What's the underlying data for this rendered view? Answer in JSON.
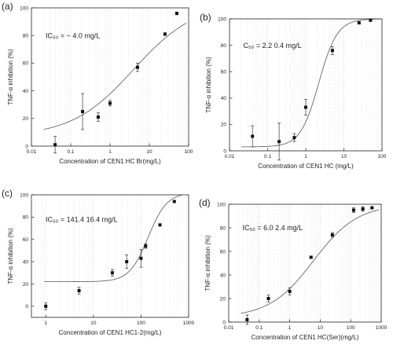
{
  "chart_data": [
    {
      "type": "scatter",
      "panel_label": "(a)",
      "annotation": "IC₅₀ = ~ 4.0 mg/L",
      "xlabel": "Concentration of CEN1 HC Br(mg/L)",
      "ylabel": "TNF-α inhibition (%)",
      "x_scale": "log",
      "xlim": [
        0.01,
        100
      ],
      "ylim": [
        0,
        100
      ],
      "x_ticks": [
        0.01,
        0.1,
        1,
        10,
        100
      ],
      "x_tick_labels": [
        "0.01",
        "0.1",
        "1",
        "10",
        "100"
      ],
      "y_ticks": [
        0,
        20,
        40,
        60,
        80,
        100
      ],
      "y_tick_labels": [
        "0",
        "20",
        "40",
        "60",
        "80",
        "100"
      ],
      "x": [
        0.04,
        0.2,
        0.5,
        1,
        5,
        25,
        50
      ],
      "y": [
        1,
        25,
        21,
        31,
        57,
        81,
        96
      ],
      "err": [
        6,
        13,
        3,
        2,
        3,
        1,
        1
      ],
      "fit": {
        "bottom": 7,
        "top": 104,
        "ic50": 4,
        "hill": 0.55
      }
    },
    {
      "type": "scatter",
      "panel_label": "(b)",
      "annotation": "C₅₀ = 2.2 0.4 mg/L",
      "xlabel": "Concentration of CEN1 HC (mg/L)",
      "ylabel": "TNF-α inhibition (%)",
      "x_scale": "log",
      "xlim": [
        0.01,
        100
      ],
      "ylim": [
        0,
        100
      ],
      "x_ticks": [
        0.01,
        0.1,
        1,
        10,
        100
      ],
      "x_tick_labels": [
        "0.01",
        "0.1",
        "1",
        "10",
        "100"
      ],
      "y_ticks": [
        0,
        20,
        40,
        60,
        80,
        100
      ],
      "y_tick_labels": [
        "0",
        "20",
        "40",
        "60",
        "80",
        "100"
      ],
      "x": [
        0.04,
        0.2,
        0.5,
        1,
        5,
        25,
        50
      ],
      "y": [
        11,
        7,
        10,
        33,
        76,
        97,
        99
      ],
      "err": [
        8,
        14,
        3,
        6,
        3,
        1,
        1
      ],
      "fit": {
        "bottom": 3,
        "top": 100,
        "ic50": 2.2,
        "hill": 1.8
      }
    },
    {
      "type": "scatter",
      "panel_label": "(c)",
      "annotation": "IC₅₀ = 141.4 16.4 mg/L",
      "xlabel": "Concentration of CEN1 HC1-2(mg/L)",
      "ylabel": "TNF-α inhibition (%)",
      "x_scale": "log",
      "xlim": [
        0.5,
        1000
      ],
      "ylim": [
        -10,
        100
      ],
      "x_ticks": [
        1,
        10,
        100,
        1000
      ],
      "x_tick_labels": [
        "1",
        "10",
        "100",
        "1000"
      ],
      "y_ticks": [
        0,
        20,
        40,
        60,
        80,
        100
      ],
      "y_tick_labels": [
        "0",
        "20",
        "40",
        "60",
        "80",
        "100"
      ],
      "x": [
        1,
        5,
        25,
        50,
        100,
        125,
        250,
        500
      ],
      "y": [
        0,
        14,
        30,
        40,
        43,
        54,
        73,
        94
      ],
      "err": [
        3,
        3,
        3,
        6,
        8,
        2,
        1,
        1
      ],
      "fit": {
        "bottom": 22,
        "top": 102,
        "ic50": 141.4,
        "hill": 2.2
      }
    },
    {
      "type": "scatter",
      "panel_label": "(d)",
      "annotation": "IC₅₀ = 6.0 2.4 mg/L",
      "xlabel": "Concentration of CEN1 HC(Ser)(mg/L)",
      "ylabel": "TNF-α inhibition (%)",
      "x_scale": "log",
      "xlim": [
        0.01,
        1000
      ],
      "ylim": [
        0,
        100
      ],
      "x_ticks": [
        0.01,
        0.1,
        1,
        10,
        100,
        1000
      ],
      "x_tick_labels": [
        "0.01",
        "0.1",
        "1",
        "10",
        "100",
        "1000"
      ],
      "y_ticks": [
        0,
        20,
        40,
        60,
        80,
        100
      ],
      "y_tick_labels": [
        "0",
        "20",
        "40",
        "60",
        "80",
        "100"
      ],
      "x": [
        0.04,
        0.2,
        1,
        5,
        25,
        125,
        250,
        500
      ],
      "y": [
        2,
        20,
        26,
        55,
        74,
        95,
        96,
        97
      ],
      "err": [
        4,
        3,
        3,
        1,
        2,
        2,
        2,
        1
      ],
      "fit": {
        "bottom": 4,
        "top": 100,
        "ic50": 6,
        "hill": 0.6
      }
    }
  ]
}
